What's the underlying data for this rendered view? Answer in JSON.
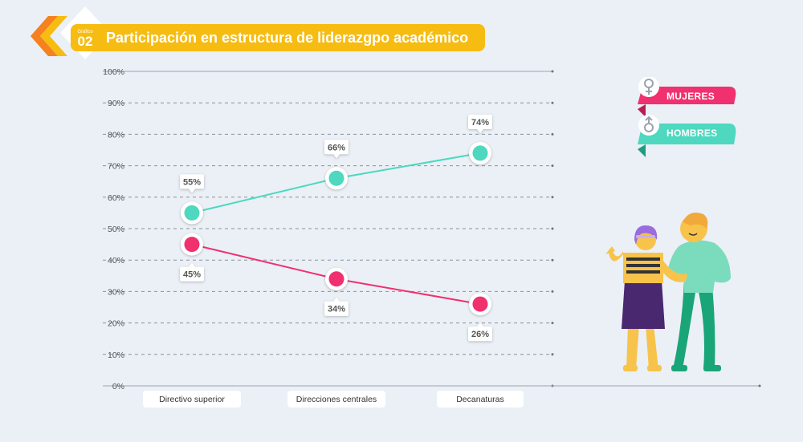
{
  "header": {
    "badge_small": "Gráfico",
    "badge_number": "02",
    "title": "Participación en estructura de liderazgpo académico"
  },
  "chart_data": {
    "type": "line",
    "categories": [
      "Directivo superior",
      "Direcciones centrales",
      "Decanaturas"
    ],
    "series": [
      {
        "name": "MUJERES",
        "values": [
          45,
          34,
          26
        ],
        "color": "#f0306f"
      },
      {
        "name": "HOMBRES",
        "values": [
          55,
          66,
          74
        ],
        "color": "#4dd8bf"
      }
    ],
    "ylim": [
      0,
      100
    ],
    "yticks": [
      "0%",
      "10%",
      "20%",
      "30%",
      "40%",
      "50%",
      "60%",
      "70%",
      "80%",
      "90%",
      "100%"
    ],
    "grid": true,
    "legend": "top-right",
    "value_suffix": "%"
  },
  "legend": {
    "mujeres": "MUJERES",
    "hombres": "HOMBRES"
  }
}
